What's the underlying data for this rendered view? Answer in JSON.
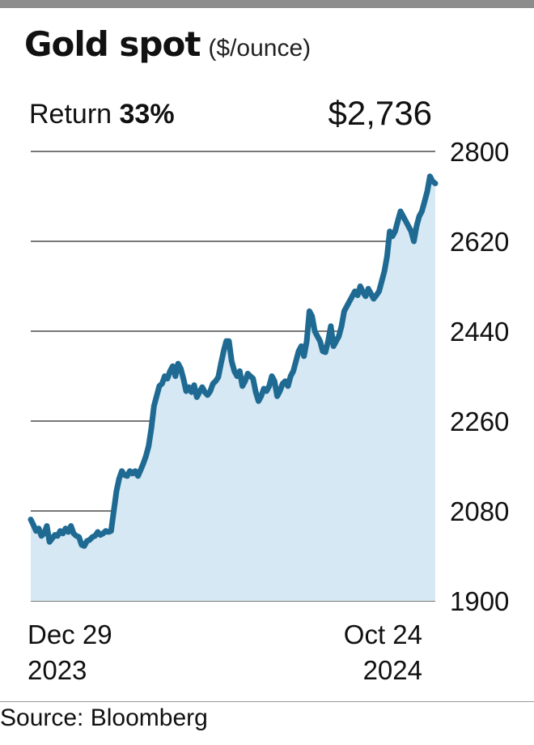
{
  "title": "Gold spot",
  "unit": "($/ounce)",
  "return_label": "Return",
  "return_value": "33%",
  "last_price": "$2,736",
  "source": "Source: Bloomberg",
  "colors": {
    "line": "#1f6a93",
    "fill": "#d6e8f3",
    "grid": "#4a4a4a"
  },
  "chart_data": {
    "type": "area",
    "title": "Gold spot",
    "ylabel": "($/ounce)",
    "ylim": [
      1900,
      2800
    ],
    "yticks": [
      2800,
      2620,
      2440,
      2260,
      2080,
      1900
    ],
    "x_axis_labels": [
      {
        "line1": "Dec 29",
        "line2": "2023"
      },
      {
        "line1": "Oct 24",
        "line2": "2024"
      }
    ],
    "series": [
      {
        "values": [
          2063,
          2052,
          2040,
          2045,
          2030,
          2035,
          2050,
          2018,
          2025,
          2032,
          2030,
          2040,
          2035,
          2045,
          2038,
          2050,
          2035,
          2030,
          2028,
          2012,
          2010,
          2020,
          2022,
          2028,
          2030,
          2038,
          2032,
          2035,
          2040,
          2038,
          2040,
          2080,
          2120,
          2145,
          2160,
          2152,
          2150,
          2160,
          2155,
          2160,
          2150,
          2162,
          2175,
          2190,
          2210,
          2245,
          2290,
          2310,
          2330,
          2335,
          2350,
          2345,
          2360,
          2370,
          2350,
          2375,
          2365,
          2345,
          2320,
          2328,
          2318,
          2332,
          2308,
          2318,
          2328,
          2318,
          2312,
          2320,
          2335,
          2340,
          2348,
          2375,
          2400,
          2420,
          2420,
          2380,
          2360,
          2350,
          2360,
          2330,
          2340,
          2355,
          2350,
          2345,
          2318,
          2300,
          2310,
          2325,
          2320,
          2330,
          2350,
          2340,
          2310,
          2320,
          2335,
          2340,
          2330,
          2350,
          2360,
          2380,
          2400,
          2410,
          2390,
          2420,
          2480,
          2470,
          2440,
          2430,
          2420,
          2400,
          2398,
          2420,
          2450,
          2410,
          2420,
          2430,
          2450,
          2480,
          2490,
          2500,
          2510,
          2520,
          2512,
          2530,
          2518,
          2510,
          2525,
          2515,
          2505,
          2512,
          2520,
          2540,
          2560,
          2590,
          2640,
          2630,
          2640,
          2660,
          2680,
          2670,
          2660,
          2650,
          2640,
          2620,
          2650,
          2670,
          2680,
          2700,
          2720,
          2750,
          2740,
          2736
        ]
      }
    ],
    "last_value": 2736,
    "grid": "horizontal",
    "source": "Bloomberg"
  }
}
